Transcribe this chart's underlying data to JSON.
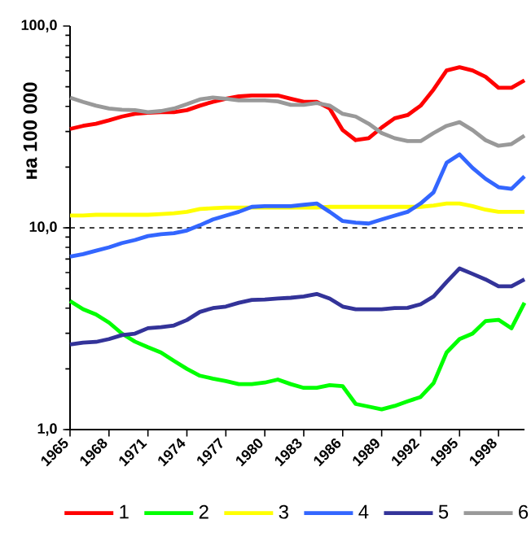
{
  "chart_data": {
    "type": "line",
    "ylabel": "на 100 000",
    "x": [
      1965,
      1966,
      1967,
      1968,
      1969,
      1970,
      1971,
      1972,
      1973,
      1974,
      1975,
      1976,
      1977,
      1978,
      1979,
      1980,
      1981,
      1982,
      1983,
      1984,
      1985,
      1986,
      1987,
      1988,
      1989,
      1990,
      1991,
      1992,
      1993,
      1994,
      1995,
      1996,
      1997,
      1998,
      1999,
      2000
    ],
    "series": [
      {
        "name": "1",
        "color": "#ff0000",
        "values": [
          30.9,
          32.0,
          32.8,
          34.1,
          35.6,
          36.7,
          37.2,
          37.4,
          37.4,
          38.3,
          40.3,
          42.1,
          43.6,
          44.8,
          45.3,
          45.3,
          45.3,
          43.6,
          42.1,
          42.1,
          39.0,
          30.5,
          27.2,
          27.8,
          31.4,
          34.9,
          36.2,
          40.3,
          48.5,
          60.2,
          62.5,
          60.2,
          56.0,
          49.4,
          49.4,
          53.8
        ]
      },
      {
        "name": "2",
        "color": "#00ff00",
        "values": [
          4.34,
          3.95,
          3.72,
          3.39,
          2.99,
          2.73,
          2.56,
          2.41,
          2.19,
          2.0,
          1.85,
          1.79,
          1.74,
          1.68,
          1.68,
          1.71,
          1.77,
          1.68,
          1.61,
          1.61,
          1.66,
          1.64,
          1.34,
          1.3,
          1.26,
          1.31,
          1.38,
          1.45,
          1.7,
          2.41,
          2.81,
          2.99,
          3.45,
          3.5,
          3.18,
          4.25
        ]
      },
      {
        "name": "3",
        "color": "#ffff00",
        "values": [
          11.5,
          11.5,
          11.6,
          11.6,
          11.6,
          11.6,
          11.6,
          11.7,
          11.8,
          12.0,
          12.4,
          12.5,
          12.6,
          12.6,
          12.6,
          12.6,
          12.6,
          12.6,
          12.6,
          12.6,
          12.7,
          12.7,
          12.7,
          12.7,
          12.7,
          12.7,
          12.7,
          12.7,
          12.9,
          13.2,
          13.2,
          12.8,
          12.3,
          12.0,
          12.0,
          12.0
        ]
      },
      {
        "name": "4",
        "color": "#3366ff",
        "values": [
          7.2,
          7.4,
          7.7,
          8.0,
          8.4,
          8.7,
          9.1,
          9.3,
          9.4,
          9.7,
          10.3,
          11.0,
          11.5,
          12.0,
          12.7,
          12.8,
          12.8,
          12.8,
          13.0,
          13.2,
          12.0,
          10.8,
          10.6,
          10.5,
          11.0,
          11.5,
          12.0,
          13.2,
          15.0,
          21.0,
          23.1,
          19.8,
          17.5,
          15.9,
          15.6,
          18.0
        ]
      },
      {
        "name": "5",
        "color": "#333399",
        "values": [
          2.64,
          2.7,
          2.72,
          2.81,
          2.94,
          2.99,
          3.18,
          3.22,
          3.28,
          3.49,
          3.83,
          4.0,
          4.07,
          4.25,
          4.39,
          4.41,
          4.46,
          4.5,
          4.57,
          4.7,
          4.46,
          4.07,
          3.95,
          3.95,
          3.95,
          4.0,
          4.01,
          4.18,
          4.57,
          5.39,
          6.29,
          5.91,
          5.55,
          5.13,
          5.13,
          5.55
        ]
      },
      {
        "name": "6",
        "color": "#999999",
        "values": [
          44.2,
          42.1,
          40.3,
          39.0,
          38.5,
          38.3,
          37.4,
          37.9,
          39.0,
          41.0,
          43.3,
          44.2,
          43.6,
          42.8,
          42.8,
          42.8,
          42.3,
          40.7,
          40.7,
          41.5,
          40.3,
          36.7,
          35.6,
          32.8,
          29.5,
          27.8,
          26.9,
          26.9,
          29.5,
          32.0,
          33.4,
          30.5,
          27.2,
          25.5,
          26.0,
          28.6
        ]
      }
    ],
    "xlim": [
      1965,
      2000
    ],
    "xticks": [
      1965,
      1968,
      1971,
      1974,
      1977,
      1980,
      1983,
      1986,
      1989,
      1992,
      1995,
      1998
    ],
    "ylim": [
      1,
      100
    ],
    "yticks": [
      {
        "value": 1,
        "label": "1,0"
      },
      {
        "value": 10,
        "label": "10,0"
      },
      {
        "value": 100,
        "label": "100,0"
      }
    ],
    "log": "y",
    "ref_lines": [
      {
        "axis": "y",
        "value": 10,
        "color": "#000000",
        "line_style": "dashed"
      }
    ],
    "legend": "bottom",
    "grid": false,
    "marker": "none",
    "line_style": "solid"
  }
}
